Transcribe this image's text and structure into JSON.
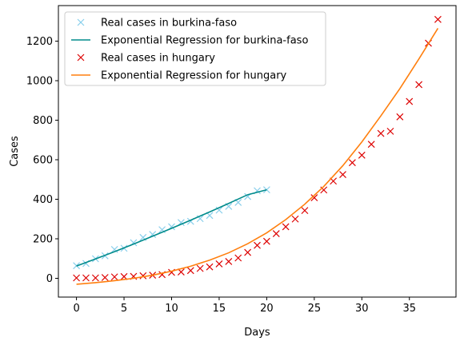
{
  "chart_data": {
    "type": "line",
    "xlabel": "Days",
    "ylabel": "Cases",
    "xlim": [
      -1.9,
      39.9
    ],
    "ylim": [
      -95,
      1380
    ],
    "xticks": [
      0,
      5,
      10,
      15,
      20,
      25,
      30,
      35
    ],
    "yticks": [
      0,
      200,
      400,
      600,
      800,
      1000,
      1200
    ],
    "grid": false,
    "legend_position": "upper-left",
    "series": [
      {
        "name": "Real cases in burkina-faso",
        "style": "markers",
        "marker": "x",
        "color": "#87ceeb",
        "x": [
          0,
          1,
          2,
          3,
          4,
          5,
          6,
          7,
          8,
          9,
          10,
          11,
          12,
          13,
          14,
          15,
          16,
          17,
          18,
          19,
          20
        ],
        "y": [
          64,
          75,
          99,
          114,
          146,
          152,
          180,
          207,
          222,
          246,
          261,
          282,
          288,
          302,
          318,
          345,
          364,
          384,
          414,
          443,
          448
        ]
      },
      {
        "name": "Exponential Regression for burkina-faso",
        "style": "line",
        "color": "#008b8b",
        "x": [
          0,
          2,
          4,
          6,
          8,
          10,
          12,
          14,
          16,
          18,
          20
        ],
        "y": [
          62,
          98,
          135,
          173,
          213,
          253,
          294,
          336,
          379,
          423,
          448
        ]
      },
      {
        "name": "Real cases in hungary",
        "style": "markers",
        "marker": "x",
        "color": "#dd0000",
        "x": [
          0,
          1,
          2,
          3,
          4,
          5,
          6,
          7,
          8,
          9,
          10,
          11,
          12,
          13,
          14,
          15,
          16,
          17,
          18,
          19,
          20,
          21,
          22,
          23,
          24,
          25,
          26,
          27,
          28,
          29,
          30,
          31,
          32,
          33,
          34,
          35,
          36,
          37,
          38
        ],
        "y": [
          2,
          2,
          2,
          4,
          7,
          9,
          10,
          13,
          16,
          19,
          30,
          32,
          39,
          50,
          58,
          73,
          85,
          103,
          131,
          167,
          187,
          226,
          261,
          300,
          343,
          408,
          447,
          492,
          525,
          585,
          623,
          678,
          733,
          744,
          817,
          895,
          980,
          1190,
          1310
        ]
      },
      {
        "name": "Exponential Regression for hungary",
        "style": "line",
        "color": "#ff7f0e",
        "x": [
          0,
          2,
          4,
          6,
          8,
          10,
          12,
          14,
          16,
          18,
          20,
          22,
          24,
          26,
          28,
          30,
          32,
          34,
          36,
          38
        ],
        "y": [
          -30,
          -22,
          -12,
          0,
          16,
          36,
          61,
          92,
          129,
          175,
          230,
          297,
          375,
          465,
          570,
          690,
          822,
          960,
          1110,
          1265
        ]
      }
    ]
  }
}
